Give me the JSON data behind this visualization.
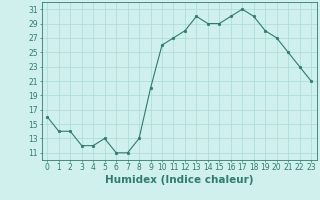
{
  "x": [
    0,
    1,
    2,
    3,
    4,
    5,
    6,
    7,
    8,
    9,
    10,
    11,
    12,
    13,
    14,
    15,
    16,
    17,
    18,
    19,
    20,
    21,
    22,
    23
  ],
  "y": [
    16,
    14,
    14,
    12,
    12,
    13,
    11,
    11,
    13,
    20,
    26,
    27,
    28,
    30,
    29,
    29,
    30,
    31,
    30,
    28,
    27,
    25,
    23,
    21
  ],
  "line_color": "#2e7d6e",
  "marker": "o",
  "marker_size": 1.8,
  "bg_color": "#cff0ec",
  "grid_color": "#a8ddd8",
  "xlabel": "Humidex (Indice chaleur)",
  "xlim": [
    -0.5,
    23.5
  ],
  "ylim": [
    10,
    32
  ],
  "yticks": [
    11,
    13,
    15,
    17,
    19,
    21,
    23,
    25,
    27,
    29,
    31
  ],
  "xticks": [
    0,
    1,
    2,
    3,
    4,
    5,
    6,
    7,
    8,
    9,
    10,
    11,
    12,
    13,
    14,
    15,
    16,
    17,
    18,
    19,
    20,
    21,
    22,
    23
  ],
  "tick_color": "#2e7d6e",
  "label_fontsize": 5.5,
  "xlabel_fontsize": 7.5
}
